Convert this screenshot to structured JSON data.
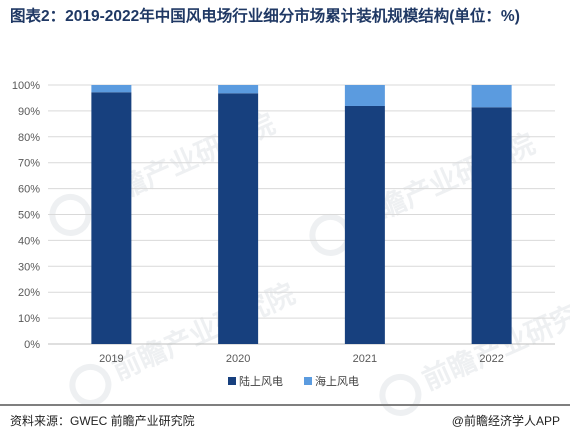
{
  "title": "图表2：2019-2022年中国风电场行业细分市场累计装机规模结构(单位：%)",
  "footer": {
    "source": "资料来源：GWEC 前瞻产业研究院",
    "brand": "@前瞻经济学人APP"
  },
  "watermark": {
    "text": "前瞻产业研究院"
  },
  "colors": {
    "onshore": "#17407e",
    "offshore": "#5b9bdf",
    "grid": "#d9d9d9",
    "axis_text": "#595959"
  },
  "chart_data": {
    "type": "bar",
    "stacked": true,
    "categories": [
      "2019",
      "2020",
      "2021",
      "2022"
    ],
    "series": [
      {
        "name": "陆上风电",
        "values": [
          97.2,
          96.8,
          91.9,
          91.4
        ]
      },
      {
        "name": "海上风电",
        "values": [
          2.8,
          3.2,
          8.1,
          8.6
        ]
      }
    ],
    "ylim": [
      0,
      100
    ],
    "yticks": [
      "0%",
      "10%",
      "20%",
      "30%",
      "40%",
      "50%",
      "60%",
      "70%",
      "80%",
      "90%",
      "100%"
    ],
    "grid": true,
    "legend_position": "bottom"
  }
}
